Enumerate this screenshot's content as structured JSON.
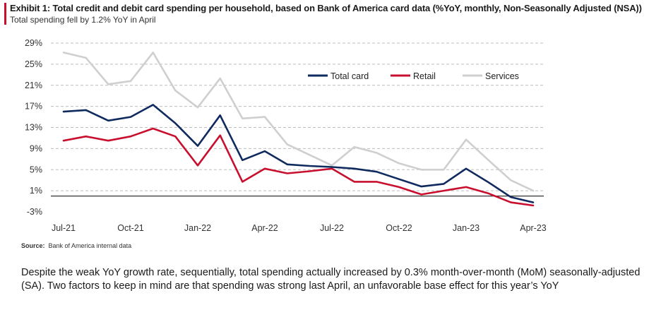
{
  "header": {
    "title": "Exhibit 1: Total credit and debit card spending per household, based on Bank of America card data (%YoY, monthly, Non-Seasonally Adjusted (NSA))",
    "subtitle": "Total spending fell by 1.2% YoY in April"
  },
  "source": {
    "label": "Source:",
    "text": "Bank of America internal data"
  },
  "body_text": "Despite the weak YoY growth rate, sequentially, total spending actually increased by 0.3% month-over-month (MoM) seasonally-adjusted (SA). Two factors to keep in mind are that spending was strong last April, an unfavorable base effect for this year’s YoY",
  "colors": {
    "accent": "#c8102e",
    "total": "#0f2a5e",
    "retail": "#c8102e",
    "services": "#cfcfcf",
    "grid": "#bdbdbd"
  },
  "chart_data": {
    "type": "line",
    "title": "Exhibit 1: Total credit and debit card spending per household, based on Bank of America card data (%YoY, monthly, Non-Seasonally Adjusted (NSA))",
    "subtitle": "Total spending fell by 1.2% YoY in April",
    "x": [
      "Jul-21",
      "Aug-21",
      "Sep-21",
      "Oct-21",
      "Nov-21",
      "Dec-21",
      "Jan-22",
      "Feb-22",
      "Mar-22",
      "Apr-22",
      "May-22",
      "Jun-22",
      "Jul-22",
      "Aug-22",
      "Sep-22",
      "Oct-22",
      "Nov-22",
      "Dec-22",
      "Jan-23",
      "Feb-23",
      "Mar-23",
      "Apr-23"
    ],
    "x_tick_labels": [
      "Jul-21",
      "Oct-21",
      "Jan-22",
      "Apr-22",
      "Jul-22",
      "Oct-22",
      "Jan-23",
      "Apr-23"
    ],
    "y_tick_labels": [
      "29%",
      "25%",
      "21%",
      "17%",
      "13%",
      "9%",
      "5%",
      "1%",
      "-3%"
    ],
    "y_ticks": [
      29,
      25,
      21,
      17,
      13,
      9,
      5,
      1,
      -3
    ],
    "ylim": [
      -3,
      29
    ],
    "grid": "horizontal dashed",
    "legend_position": "top-right",
    "series": [
      {
        "name": "Total card",
        "values": [
          16.0,
          16.3,
          14.3,
          15.0,
          17.3,
          13.8,
          9.5,
          15.3,
          6.8,
          8.5,
          6.0,
          5.7,
          5.5,
          5.2,
          4.6,
          3.2,
          1.8,
          2.3,
          5.2,
          2.6,
          -0.2,
          -1.2
        ]
      },
      {
        "name": "Retail",
        "values": [
          10.5,
          11.3,
          10.5,
          11.3,
          12.8,
          11.3,
          5.8,
          11.5,
          2.7,
          5.2,
          4.3,
          4.7,
          5.2,
          2.7,
          2.7,
          1.7,
          0.3,
          1.0,
          1.7,
          0.5,
          -1.2,
          -1.8
        ]
      },
      {
        "name": "Services",
        "values": [
          27.2,
          26.2,
          21.2,
          21.8,
          27.2,
          20.0,
          16.8,
          22.3,
          14.7,
          15.0,
          9.8,
          7.8,
          5.8,
          9.3,
          8.2,
          6.2,
          5.0,
          5.0,
          10.7,
          6.8,
          3.0,
          1.0
        ]
      }
    ]
  }
}
